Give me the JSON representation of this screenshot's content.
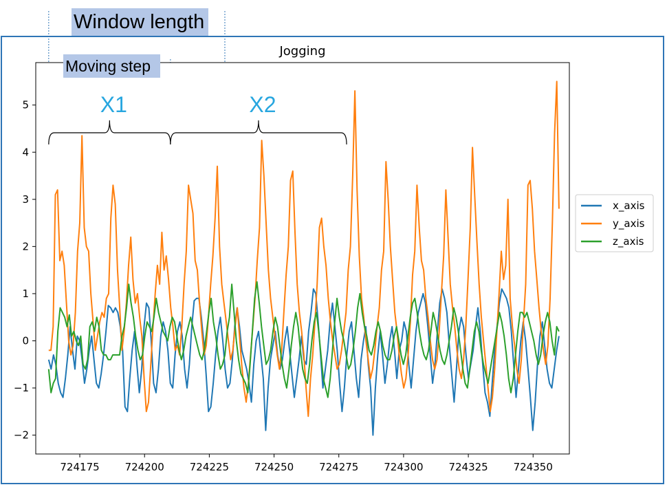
{
  "annotations": {
    "window_length_label": "Window length",
    "moving_step_label": "Moving step",
    "windows": [
      {
        "label": "X1",
        "start": 724163,
        "end": 724210
      },
      {
        "label": "X2",
        "start": 724210,
        "end": 724278
      }
    ],
    "window_length_end": 724231,
    "moving_step_end": 724210,
    "label_color": "#27a6df",
    "box_color": "#b4c7e7",
    "frame_color": "#2e75b6"
  },
  "chart_data": {
    "type": "line",
    "title": "Jogging",
    "xlabel": "",
    "ylabel": "",
    "xlim": [
      724158,
      724364
    ],
    "ylim": [
      -2.4,
      5.9
    ],
    "xticks": [
      724175,
      724200,
      724225,
      724250,
      724275,
      724300,
      724325,
      724350
    ],
    "yticks": [
      -2,
      -1,
      0,
      1,
      2,
      3,
      4,
      5
    ],
    "grid": false,
    "legend_position": "outside-right",
    "x_start": 724163,
    "x_step": 1,
    "series": [
      {
        "name": "x_axis",
        "color": "#1f77b4",
        "values": [
          -0.4,
          -0.6,
          -0.3,
          -0.5,
          -0.9,
          -1.1,
          -1.2,
          -0.8,
          -0.3,
          0.3,
          -0.2,
          -0.6,
          0.1,
          0.0,
          -0.4,
          -0.9,
          -0.6,
          -0.2,
          0.1,
          -0.4,
          -0.9,
          -1.0,
          -0.7,
          -0.3,
          0.2,
          0.75,
          0.7,
          0.6,
          0.7,
          0.6,
          0.3,
          -0.2,
          -1.4,
          -1.5,
          -0.8,
          -0.2,
          0.2,
          -0.5,
          -1.1,
          -0.6,
          0.3,
          0.8,
          0.7,
          0.0,
          -0.9,
          -1.1,
          -0.6,
          0.1,
          0.4,
          0.2,
          -0.2,
          -0.9,
          -1.0,
          -0.3,
          0.2,
          0.4,
          0.1,
          -0.6,
          -1.0,
          -0.5,
          0.3,
          0.85,
          0.9,
          0.9,
          0.5,
          0.0,
          -0.7,
          -1.5,
          -1.4,
          -0.9,
          -0.3,
          0.2,
          0.5,
          0.0,
          -0.6,
          -1.0,
          -0.9,
          -0.4,
          0.3,
          0.7,
          0.3,
          -0.2,
          -0.4,
          -0.6,
          -0.9,
          -1.3,
          -0.5,
          0.0,
          0.2,
          -0.3,
          -0.8,
          -1.9,
          -1.0,
          -0.4,
          -0.1,
          0.2,
          -0.3,
          -0.6,
          -0.4,
          0.0,
          0.3,
          -0.2,
          -0.7,
          -1.2,
          -0.8,
          -0.4,
          0.1,
          -0.4,
          -0.5,
          0.2,
          0.6,
          1.1,
          1.0,
          0.4,
          -0.3,
          -1.0,
          -0.6,
          -0.2,
          0.4,
          0.8,
          0.3,
          -0.2,
          -0.9,
          -1.5,
          -1.0,
          -0.3,
          0.2,
          0.4,
          -0.2,
          -0.8,
          -1.2,
          -0.4,
          0.0,
          0.3,
          -0.5,
          -1.0,
          -2.0,
          -1.0,
          -0.3,
          0.2,
          -0.3,
          -0.9,
          -0.5,
          0.0,
          0.3,
          -0.2,
          -0.8,
          -0.2,
          0.0,
          0.4,
          0.2,
          -0.5,
          -1.0,
          -0.4,
          0.2,
          0.6,
          0.8,
          1.0,
          0.8,
          0.3,
          -0.3,
          -0.9,
          -0.5,
          0.2,
          0.8,
          1.1,
          0.9,
          0.6,
          -0.1,
          -0.7,
          -1.3,
          -0.6,
          0.2,
          0.5,
          0.3,
          -0.3,
          -0.8,
          -0.5,
          -0.2,
          0.3,
          0.7,
          0.2,
          -0.5,
          -1.1,
          -1.3,
          -1.6,
          -0.9,
          -0.2,
          0.3,
          0.8,
          1.1,
          1.0,
          0.9,
          0.7,
          0.2,
          -0.5,
          -1.2,
          -0.6,
          0.0,
          0.4,
          0.0,
          -0.6,
          -1.2,
          -1.9,
          -1.3,
          -0.5,
          0.1,
          0.4,
          -0.1,
          -0.6,
          -0.9,
          -1.0,
          -0.6,
          -0.2,
          0.1
        ]
      },
      {
        "name": "y_axis",
        "color": "#ff7f0e",
        "values": [
          -0.2,
          -0.2,
          0.3,
          3.1,
          3.2,
          1.7,
          1.9,
          1.6,
          0.8,
          0.0,
          -0.3,
          -0.1,
          0.6,
          1.9,
          2.5,
          4.35,
          2.4,
          2.0,
          1.9,
          1.0,
          0.4,
          -0.2,
          0.1,
          0.4,
          0.6,
          0.5,
          0.9,
          1.0,
          2.6,
          3.3,
          2.9,
          1.5,
          0.7,
          -0.2,
          0.2,
          0.8,
          1.6,
          2.2,
          1.3,
          0.8,
          1.0,
          0.5,
          0.1,
          -0.8,
          -1.5,
          -1.3,
          -0.5,
          0.3,
          1.0,
          1.6,
          1.2,
          2.3,
          1.5,
          1.8,
          1.3,
          0.7,
          0.3,
          -0.2,
          -0.1,
          -0.3,
          0.3,
          1.2,
          1.9,
          3.3,
          3.0,
          2.7,
          1.7,
          1.5,
          0.8,
          0.2,
          -0.3,
          -0.1,
          0.5,
          1.2,
          1.8,
          2.6,
          3.7,
          2.0,
          1.2,
          0.8,
          0.4,
          0.0,
          -0.4,
          -0.2,
          0.3,
          0.7,
          0.1,
          -0.5,
          -1.0,
          -1.3,
          -0.9,
          -0.3,
          0.3,
          0.9,
          1.7,
          2.4,
          4.25,
          3.5,
          2.5,
          1.5,
          0.9,
          0.5,
          0.1,
          -0.3,
          -0.6,
          -0.2,
          0.6,
          1.4,
          2.0,
          3.4,
          3.6,
          2.3,
          1.2,
          0.6,
          0.2,
          -0.3,
          -1.0,
          -1.6,
          -0.8,
          -0.3,
          0.4,
          1.2,
          2.4,
          2.6,
          2.0,
          1.6,
          0.9,
          0.4,
          0.0,
          -0.3,
          -0.6,
          -0.5,
          -0.2,
          0.2,
          0.6,
          1.5,
          2.0,
          3.5,
          5.3,
          3.2,
          1.8,
          0.9,
          0.5,
          0.0,
          -0.4,
          -0.8,
          -0.6,
          -0.2,
          0.3,
          0.7,
          1.5,
          1.9,
          3.8,
          3.0,
          2.0,
          1.3,
          0.6,
          0.2,
          -0.3,
          -0.7,
          -1.0,
          -0.8,
          -0.3,
          0.4,
          1.4,
          1.9,
          3.3,
          2.4,
          1.7,
          1.5,
          0.9,
          0.5,
          0.0,
          -0.4,
          -0.6,
          -0.4,
          0.2,
          1.0,
          1.8,
          3.2,
          2.2,
          1.2,
          0.7,
          0.3,
          -0.2,
          -0.6,
          -0.8,
          -0.4,
          0.3,
          1.3,
          2.4,
          4.1,
          3.1,
          2.1,
          1.2,
          0.5,
          0.0,
          -0.5,
          -1.0,
          -1.5,
          -1.2,
          -0.6,
          0.2,
          1.0,
          1.9,
          1.3,
          1.6,
          3.0,
          0.9,
          0.3,
          -0.1,
          -0.6,
          -0.9,
          -0.4,
          0.4,
          1.2,
          3.3,
          3.4,
          2.8,
          1.9,
          1.3,
          0.7,
          0.2,
          -0.2,
          -0.5,
          -0.1,
          0.9,
          2.5,
          4.4,
          5.5,
          2.8
        ]
      },
      {
        "name": "z_axis",
        "color": "#2ca02c",
        "values": [
          -0.6,
          -1.1,
          -0.9,
          -0.8,
          0.2,
          0.7,
          0.6,
          0.5,
          0.3,
          0.55,
          0.1,
          0.2,
          0.0,
          -0.1,
          0.1,
          -0.5,
          -0.6,
          -0.4,
          0.3,
          0.4,
          0.2,
          0.5,
          0.3,
          -0.2,
          -0.3,
          -0.3,
          -0.4,
          -0.4,
          -0.3,
          -0.3,
          -0.3,
          -0.3,
          0.1,
          0.3,
          0.7,
          1.2,
          0.8,
          0.5,
          0.1,
          -0.2,
          -0.4,
          -0.3,
          0.1,
          0.4,
          0.3,
          0.2,
          0.5,
          0.9,
          0.6,
          0.4,
          0.2,
          0.1,
          0.0,
          0.3,
          0.5,
          0.4,
          0.1,
          -0.2,
          -0.4,
          -0.2,
          0.1,
          0.3,
          0.5,
          0.3,
          0.1,
          -0.1,
          -0.3,
          -0.4,
          -0.2,
          0.2,
          0.6,
          0.9,
          0.4,
          0.1,
          -0.3,
          -0.6,
          -0.5,
          -0.3,
          0.2,
          0.5,
          1.2,
          0.6,
          0.0,
          -0.4,
          -0.7,
          -0.8,
          -0.9,
          -1.1,
          -0.5,
          0.2,
          0.9,
          1.25,
          0.8,
          0.3,
          -0.1,
          -0.5,
          -0.4,
          -0.2,
          0.2,
          0.5,
          0.3,
          -0.1,
          -0.5,
          -0.8,
          -1.0,
          -0.6,
          -0.1,
          0.3,
          0.6,
          0.3,
          -0.2,
          -0.6,
          -0.8,
          -0.9,
          -0.5,
          0.0,
          0.4,
          0.6,
          0.2,
          -0.3,
          -0.8,
          -1.0,
          -1.2,
          -0.8,
          -0.2,
          0.4,
          0.9,
          0.5,
          0.2,
          0.0,
          -0.3,
          -0.6,
          -0.5,
          -0.2,
          0.2,
          0.7,
          1.0,
          0.6,
          0.3,
          0.1,
          -0.2,
          -0.3,
          -0.1,
          0.2,
          0.4,
          0.2,
          -0.1,
          -0.3,
          -0.4,
          -0.4,
          -0.2,
          0.1,
          0.3,
          0.0,
          -0.3,
          -0.5,
          -0.3,
          0.1,
          0.5,
          0.8,
          0.9,
          0.6,
          0.2,
          -0.1,
          -0.3,
          -0.4,
          -0.2,
          0.2,
          0.6,
          0.4,
          0.1,
          -0.2,
          -0.4,
          -0.5,
          -0.3,
          0.0,
          0.3,
          0.7,
          0.5,
          0.2,
          -0.2,
          -0.6,
          -0.9,
          -1.0,
          -0.6,
          -0.2,
          0.2,
          0.4,
          0.2,
          -0.2,
          -0.5,
          -0.7,
          -0.9,
          -0.6,
          -0.3,
          0.0,
          0.3,
          0.6,
          0.4,
          0.1,
          -0.3,
          -0.8,
          -1.1,
          -0.8,
          -0.3,
          0.2,
          0.6,
          0.6,
          0.5,
          0.6,
          0.4,
          0.2,
          0.0,
          -0.3,
          -0.5,
          -0.3,
          0.1,
          0.4,
          0.6,
          0.4,
          0.0,
          -0.3,
          0.3,
          0.2
        ]
      }
    ]
  }
}
